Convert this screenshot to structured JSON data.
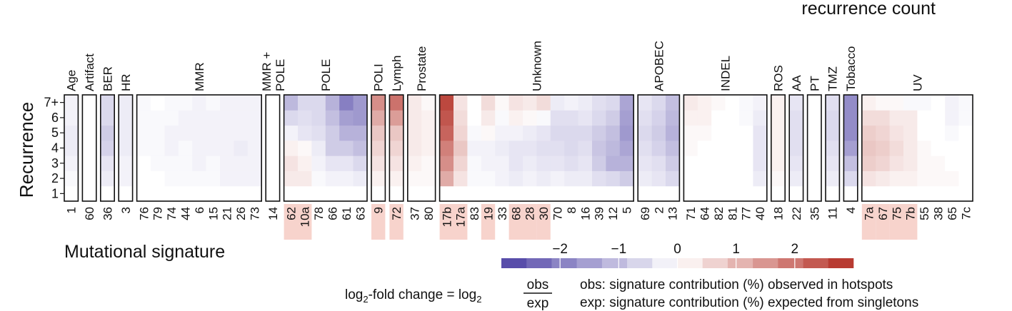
{
  "legend_title": "recurrence count",
  "formula": {
    "prefix": "log",
    "sub": "2",
    "mid": "-fold change = log",
    "sub2": "2",
    "numerator": "obs",
    "denominator": "exp"
  },
  "explanations": [
    "obs: signature contribution (%) observed in hotspots",
    "exp: signature contribution (%) expected from singletons"
  ],
  "colors": {
    "neg_strong": "#4b3fa3",
    "neutral": "#ffffff",
    "pos_strong": "#b22c22",
    "frame": "#111111",
    "highlight": "#f7d3cc"
  },
  "chart_data": {
    "type": "heatmap",
    "title": "",
    "xlabel": "Mutational signature",
    "ylabel": "Recurrence",
    "y_categories": [
      "1",
      "2",
      "3",
      "4",
      "5",
      "6",
      "7+"
    ],
    "color_scale": {
      "range": [
        -3,
        3
      ],
      "ticks": [
        -2,
        -1,
        0,
        1,
        2
      ],
      "tick_labels": [
        "−2",
        "−1",
        "0",
        "1",
        "2"
      ],
      "steps": 14
    },
    "groups": [
      {
        "name": "Age",
        "signatures": [
          "1"
        ]
      },
      {
        "name": "Artifact",
        "signatures": [
          "60"
        ]
      },
      {
        "name": "BER",
        "signatures": [
          "36"
        ]
      },
      {
        "name": "HR",
        "signatures": [
          "3"
        ]
      },
      {
        "name": "MMR",
        "signatures": [
          "76",
          "79",
          "74",
          "44",
          "6",
          "15",
          "21",
          "26",
          "73"
        ]
      },
      {
        "name": "MMR +\nPOLE",
        "signatures": [
          "14"
        ]
      },
      {
        "name": "POLE",
        "signatures": [
          "62",
          "10a",
          "78",
          "66",
          "61",
          "63"
        ]
      },
      {
        "name": "POLI",
        "signatures": [
          "9"
        ]
      },
      {
        "name": "Lymph",
        "signatures": [
          "72"
        ]
      },
      {
        "name": "Prostate",
        "signatures": [
          "37",
          "80"
        ]
      },
      {
        "name": "Unknown",
        "signatures": [
          "17b",
          "17a",
          "83",
          "19",
          "33",
          "68",
          "28",
          "30",
          "70",
          "8",
          "16",
          "39",
          "12",
          "5"
        ]
      },
      {
        "name": "APOBEC",
        "signatures": [
          "69",
          "2",
          "13"
        ]
      },
      {
        "name": "INDEL",
        "signatures": [
          "71",
          "64",
          "82",
          "81",
          "77",
          "40"
        ]
      },
      {
        "name": "ROS",
        "signatures": [
          "18"
        ]
      },
      {
        "name": "AA",
        "signatures": [
          "22"
        ]
      },
      {
        "name": "PT",
        "signatures": [
          "35"
        ]
      },
      {
        "name": "TMZ",
        "signatures": [
          "11"
        ]
      },
      {
        "name": "Tobacco",
        "signatures": [
          "4"
        ]
      },
      {
        "name": "UV",
        "signatures": [
          "7a",
          "67",
          "75",
          "7b",
          "55",
          "38",
          "65",
          "7c"
        ]
      }
    ],
    "highlighted_signatures": [
      "62",
      "10a",
      "9",
      "72",
      "17b",
      "17a",
      "19",
      "68",
      "28",
      "30",
      "7a",
      "67",
      "75",
      "7b"
    ],
    "values_note_rows": "each array lists values for recurrence 1,2,3,4,5,6,7+",
    "values": {
      "1": [
        0,
        -0.1,
        -0.2,
        -0.3,
        -0.3,
        -0.2,
        -0.2
      ],
      "60": [
        0,
        0,
        0,
        0,
        0,
        0,
        0
      ],
      "36": [
        0,
        -0.3,
        -0.4,
        -0.7,
        -0.8,
        -0.6,
        -0.6
      ],
      "3": [
        0,
        -0.2,
        -0.2,
        -0.3,
        -0.3,
        -0.3,
        -0.3
      ],
      "76": [
        0,
        0,
        0,
        -0.1,
        -0.1,
        -0.1,
        -0.1
      ],
      "79": [
        0,
        0,
        -0.1,
        -0.1,
        -0.1,
        -0.1,
        0
      ],
      "74": [
        0,
        -0.1,
        -0.1,
        -0.2,
        -0.2,
        -0.1,
        -0.1
      ],
      "44": [
        0,
        -0.1,
        -0.1,
        -0.1,
        -0.2,
        -0.2,
        -0.1
      ],
      "6": [
        0,
        -0.1,
        -0.2,
        -0.2,
        -0.2,
        -0.2,
        -0.2
      ],
      "15": [
        0,
        -0.1,
        -0.1,
        -0.2,
        -0.2,
        -0.2,
        -0.1
      ],
      "21": [
        0,
        -0.2,
        -0.2,
        -0.2,
        -0.2,
        -0.2,
        -0.2
      ],
      "26": [
        0,
        -0.2,
        -0.2,
        -0.3,
        -0.2,
        -0.2,
        -0.2
      ],
      "73": [
        0,
        -0.2,
        -0.2,
        -0.2,
        -0.2,
        -0.2,
        -0.2
      ],
      "14": [
        0,
        0,
        0,
        0,
        0,
        0,
        0
      ],
      "62": [
        0,
        0.3,
        0.4,
        0.2,
        -0.2,
        -0.6,
        -1.1
      ],
      "10a": [
        0,
        0.3,
        0.2,
        0.1,
        -0.4,
        -0.5,
        -0.6
      ],
      "78": [
        0,
        -0.1,
        -0.2,
        -0.3,
        -0.5,
        -0.6,
        -0.6
      ],
      "66": [
        0,
        -0.2,
        -0.4,
        -0.8,
        -0.8,
        -1.0,
        -1.2
      ],
      "61": [
        0,
        -0.2,
        -0.4,
        -0.8,
        -1.2,
        -1.5,
        -2.0
      ],
      "63": [
        0,
        -0.3,
        -0.6,
        -1.0,
        -1.2,
        -1.6,
        -1.6
      ],
      "9": [
        0,
        0.2,
        0.4,
        0.6,
        0.8,
        1.2,
        1.6
      ],
      "72": [
        0,
        0.2,
        0.4,
        0.6,
        0.8,
        1.4,
        2.0
      ],
      "37": [
        0,
        0.1,
        0.2,
        0.3,
        0.3,
        0.3,
        0.3
      ],
      "80": [
        0,
        0.1,
        0.1,
        0.2,
        0.2,
        0.2,
        0.1
      ],
      "17b": [
        0,
        1.2,
        1.6,
        1.8,
        2.2,
        2.4,
        2.6
      ],
      "17a": [
        0,
        0.4,
        0.6,
        0.8,
        0.6,
        0.5,
        0.4
      ],
      "83": [
        0,
        -0.1,
        -0.1,
        -0.2,
        -0.1,
        0,
        0
      ],
      "19": [
        0,
        -0.1,
        -0.2,
        -0.2,
        0.1,
        0.3,
        0.5
      ],
      "33": [
        0,
        -0.2,
        -0.2,
        -0.3,
        -0.2,
        -0.1,
        0.1
      ],
      "68": [
        0,
        -0.3,
        -0.4,
        -0.4,
        -0.2,
        0.2,
        0.4
      ],
      "28": [
        0,
        -0.2,
        -0.3,
        -0.4,
        -0.3,
        0.1,
        0.3
      ],
      "30": [
        0,
        -0.3,
        -0.4,
        -0.5,
        -0.4,
        -0.1,
        0.5
      ],
      "70": [
        0,
        -0.2,
        -0.4,
        -0.5,
        -0.6,
        -0.5,
        -0.3
      ],
      "8": [
        0,
        -0.3,
        -0.5,
        -0.6,
        -0.6,
        -0.5,
        -0.2
      ],
      "16": [
        0,
        -0.3,
        -0.4,
        -0.5,
        -0.6,
        -0.4,
        -0.3
      ],
      "39": [
        0,
        -0.5,
        -0.8,
        -0.9,
        -0.8,
        -0.6,
        -0.5
      ],
      "12": [
        0,
        -0.6,
        -1.2,
        -1.1,
        -1.0,
        -0.8,
        -0.6
      ],
      "5": [
        0,
        -0.8,
        -1.2,
        -1.4,
        -1.6,
        -1.5,
        -1.4
      ],
      "69": [
        0,
        -0.3,
        -0.4,
        -0.5,
        -0.6,
        -0.5,
        -0.4
      ],
      "2": [
        0,
        -0.4,
        -0.5,
        -0.7,
        -0.8,
        -0.7,
        -0.6
      ],
      "13": [
        0,
        -0.6,
        -0.8,
        -1.0,
        -1.2,
        -1.1,
        -1.0
      ],
      "71": [
        0,
        0,
        0,
        0.1,
        0.1,
        0.2,
        0.3
      ],
      "64": [
        0,
        0,
        0,
        0,
        0.1,
        0.2,
        0.2
      ],
      "82": [
        0,
        0,
        0,
        0,
        0,
        0,
        0.1
      ],
      "81": [
        0,
        0,
        0,
        0,
        0,
        0,
        0
      ],
      "77": [
        0,
        0,
        0,
        0,
        0,
        -0.1,
        -0.1
      ],
      "40": [
        0,
        -0.3,
        -0.4,
        -0.4,
        -0.4,
        -0.3,
        -0.2
      ],
      "18": [
        0,
        0.1,
        0.2,
        0.2,
        0.2,
        0.2,
        0.2
      ],
      "22": [
        0,
        -0.3,
        -0.4,
        -0.5,
        -0.5,
        -0.5,
        -0.4
      ],
      "35": [
        0,
        0,
        0,
        0,
        0,
        0,
        0
      ],
      "11": [
        0,
        -0.3,
        -0.4,
        -0.5,
        -0.6,
        -0.6,
        -0.5
      ],
      "4": [
        0,
        -0.6,
        -1.0,
        -1.5,
        -1.8,
        -1.8,
        -1.8
      ],
      "7a": [
        0,
        0.4,
        0.7,
        0.8,
        0.7,
        0.5,
        0.2
      ],
      "67": [
        0,
        0.3,
        0.6,
        0.7,
        0.6,
        0.5,
        0.1
      ],
      "75": [
        0,
        0.2,
        0.4,
        0.5,
        0.4,
        0.3,
        0.1
      ],
      "7b": [
        0,
        0.2,
        0.3,
        0.3,
        0.3,
        0.3,
        -0.1
      ],
      "55": [
        0,
        0.1,
        0.1,
        0.1,
        0,
        0,
        -0.1
      ],
      "38": [
        0,
        0.1,
        0.1,
        0,
        0,
        0,
        0
      ],
      "65": [
        0,
        0.1,
        0,
        0,
        -0.1,
        -0.2,
        -0.2
      ],
      "7c": [
        0,
        0,
        0,
        0,
        0,
        -0.1,
        -0.1
      ]
    }
  }
}
